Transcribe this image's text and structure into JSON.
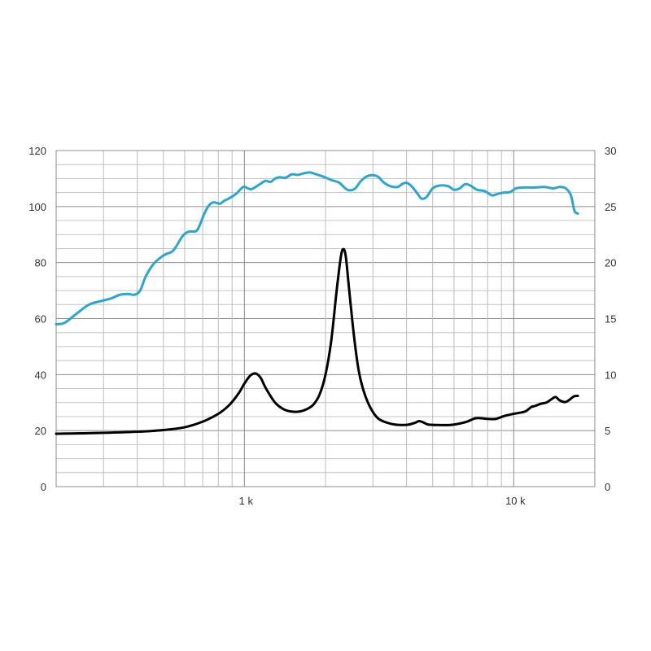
{
  "chart_data": {
    "type": "line",
    "x_scale": "log",
    "xlim": [
      200,
      20000
    ],
    "x_tick_labels": [
      {
        "value": 1000,
        "label": "1 k"
      },
      {
        "value": 10000,
        "label": "10 k"
      }
    ],
    "ylim_left": [
      0,
      120
    ],
    "y_ticks_left": [
      "0",
      "20",
      "40",
      "60",
      "80",
      "100",
      "120"
    ],
    "ylim_right": [
      0,
      30
    ],
    "y_ticks_right": [
      "0",
      "5",
      "10",
      "15",
      "20",
      "25",
      "30"
    ],
    "grid": true,
    "series": [
      {
        "axis": "left",
        "color": "#2aa7d0",
        "points": [
          [
            200,
            58
          ],
          [
            215,
            58.5
          ],
          [
            240,
            62
          ],
          [
            265,
            65
          ],
          [
            300,
            66.5
          ],
          [
            320,
            67.2
          ],
          [
            345,
            68.5
          ],
          [
            370,
            68.8
          ],
          [
            390,
            68.5
          ],
          [
            410,
            70
          ],
          [
            430,
            75
          ],
          [
            460,
            79.5
          ],
          [
            500,
            82.5
          ],
          [
            540,
            84
          ],
          [
            560,
            86
          ],
          [
            590,
            89.5
          ],
          [
            620,
            91
          ],
          [
            660,
            91.2
          ],
          [
            680,
            93
          ],
          [
            710,
            97.5
          ],
          [
            740,
            100.5
          ],
          [
            770,
            101.5
          ],
          [
            810,
            101
          ],
          [
            840,
            102
          ],
          [
            880,
            103
          ],
          [
            930,
            104.5
          ],
          [
            990,
            107
          ],
          [
            1030,
            106.5
          ],
          [
            1060,
            106.2
          ],
          [
            1100,
            107
          ],
          [
            1150,
            108.2
          ],
          [
            1200,
            109.2
          ],
          [
            1250,
            108.8
          ],
          [
            1300,
            110
          ],
          [
            1350,
            110.5
          ],
          [
            1420,
            110.3
          ],
          [
            1500,
            111.5
          ],
          [
            1580,
            111.3
          ],
          [
            1650,
            111.8
          ],
          [
            1750,
            112.2
          ],
          [
            1850,
            111.5
          ],
          [
            1950,
            110.8
          ],
          [
            2100,
            109.5
          ],
          [
            2250,
            108.5
          ],
          [
            2350,
            106.8
          ],
          [
            2450,
            105.8
          ],
          [
            2580,
            106.5
          ],
          [
            2700,
            109
          ],
          [
            2850,
            110.8
          ],
          [
            3000,
            111.2
          ],
          [
            3150,
            110.5
          ],
          [
            3300,
            108.5
          ],
          [
            3500,
            107.2
          ],
          [
            3700,
            107
          ],
          [
            3850,
            108
          ],
          [
            4000,
            108.5
          ],
          [
            4200,
            107
          ],
          [
            4400,
            104.5
          ],
          [
            4550,
            102.8
          ],
          [
            4750,
            103.5
          ],
          [
            5000,
            106.5
          ],
          [
            5300,
            107.5
          ],
          [
            5700,
            107.3
          ],
          [
            6000,
            106
          ],
          [
            6300,
            106.5
          ],
          [
            6600,
            108
          ],
          [
            6900,
            107.5
          ],
          [
            7300,
            106
          ],
          [
            7800,
            105.5
          ],
          [
            8300,
            104
          ],
          [
            8700,
            104.5
          ],
          [
            9200,
            105
          ],
          [
            9700,
            105.2
          ],
          [
            10200,
            106.5
          ],
          [
            11000,
            106.8
          ],
          [
            12000,
            106.8
          ],
          [
            13000,
            107
          ],
          [
            14000,
            106.5
          ],
          [
            14800,
            107
          ],
          [
            15600,
            106.5
          ],
          [
            16300,
            104
          ],
          [
            16800,
            98.5
          ],
          [
            17300,
            97.5
          ]
        ]
      },
      {
        "axis": "right",
        "color": "#000000",
        "points": [
          [
            200,
            4.72
          ],
          [
            300,
            4.8
          ],
          [
            400,
            4.9
          ],
          [
            500,
            5.05
          ],
          [
            600,
            5.3
          ],
          [
            700,
            5.8
          ],
          [
            800,
            6.5
          ],
          [
            880,
            7.3
          ],
          [
            950,
            8.3
          ],
          [
            1000,
            9.2
          ],
          [
            1050,
            9.9
          ],
          [
            1100,
            10.1
          ],
          [
            1150,
            9.7
          ],
          [
            1200,
            8.8
          ],
          [
            1300,
            7.5
          ],
          [
            1400,
            6.9
          ],
          [
            1500,
            6.7
          ],
          [
            1600,
            6.7
          ],
          [
            1700,
            6.9
          ],
          [
            1800,
            7.3
          ],
          [
            1900,
            8.2
          ],
          [
            2000,
            10
          ],
          [
            2100,
            13
          ],
          [
            2200,
            17.5
          ],
          [
            2280,
            20.5
          ],
          [
            2330,
            21.2
          ],
          [
            2380,
            20.5
          ],
          [
            2450,
            17.5
          ],
          [
            2550,
            13.5
          ],
          [
            2650,
            10.5
          ],
          [
            2750,
            8.8
          ],
          [
            2900,
            7.3
          ],
          [
            3100,
            6.2
          ],
          [
            3300,
            5.8
          ],
          [
            3600,
            5.55
          ],
          [
            3900,
            5.5
          ],
          [
            4100,
            5.55
          ],
          [
            4300,
            5.7
          ],
          [
            4450,
            5.85
          ],
          [
            4600,
            5.75
          ],
          [
            4800,
            5.55
          ],
          [
            5200,
            5.5
          ],
          [
            5800,
            5.5
          ],
          [
            6200,
            5.6
          ],
          [
            6700,
            5.8
          ],
          [
            7200,
            6.1
          ],
          [
            7600,
            6.1
          ],
          [
            8000,
            6.05
          ],
          [
            8600,
            6.05
          ],
          [
            9200,
            6.3
          ],
          [
            10000,
            6.5
          ],
          [
            11000,
            6.7
          ],
          [
            11600,
            7.1
          ],
          [
            12000,
            7.2
          ],
          [
            12600,
            7.4
          ],
          [
            13200,
            7.5
          ],
          [
            13800,
            7.8
          ],
          [
            14300,
            8.0
          ],
          [
            14800,
            7.7
          ],
          [
            15500,
            7.55
          ],
          [
            16100,
            7.75
          ],
          [
            16700,
            8.05
          ],
          [
            17300,
            8.1
          ]
        ]
      }
    ]
  }
}
